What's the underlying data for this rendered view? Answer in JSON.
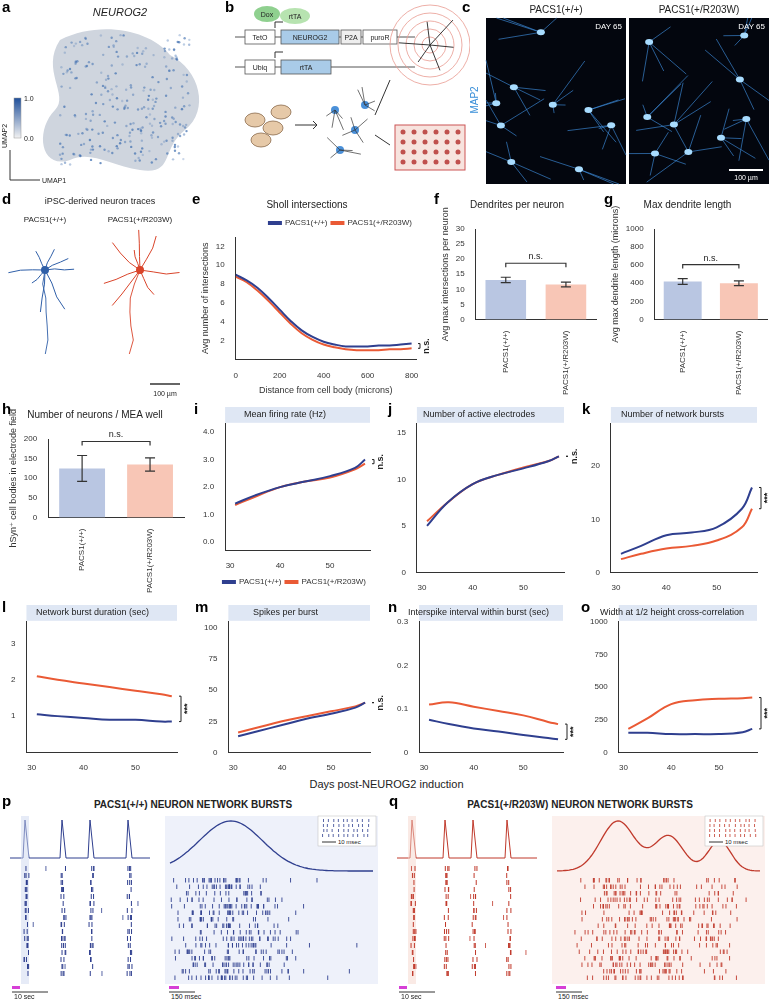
{
  "chart_data": [
    {
      "panel": "e",
      "type": "line",
      "title": "Sholl intersections",
      "xlabel": "Distance from cell body (microns)",
      "ylabel": "Avg number of intersections",
      "x": [
        0,
        50,
        100,
        150,
        200,
        250,
        300,
        350,
        400,
        450,
        500,
        550,
        600,
        650,
        700,
        750,
        800
      ],
      "series": [
        {
          "name": "PACS1(+/+)",
          "color": "#2f3f8f",
          "values": [
            9.0,
            8.4,
            7.6,
            6.5,
            5.3,
            4.1,
            3.1,
            2.4,
            1.9,
            1.6,
            1.4,
            1.4,
            1.4,
            1.5,
            1.5,
            1.6,
            1.7
          ]
        },
        {
          "name": "PACS1(+/R203W)",
          "color": "#ea5a35",
          "values": [
            8.8,
            8.2,
            7.3,
            6.2,
            5.0,
            3.8,
            2.8,
            2.1,
            1.6,
            1.3,
            1.1,
            1.0,
            1.0,
            1.0,
            1.1,
            1.1,
            1.2
          ]
        }
      ],
      "xlim": [
        0,
        820
      ],
      "xticks": [
        0,
        200,
        400,
        600,
        800
      ],
      "ylim": [
        0,
        13
      ],
      "yticks": [
        2,
        4,
        6,
        8,
        10,
        12
      ],
      "legend": "upper right",
      "grid": false,
      "marker": "none",
      "annotation": "n.s."
    },
    {
      "panel": "f",
      "type": "bar",
      "title": "Dendrites per neuron",
      "ylabel": "Avg max intersections per neuron",
      "categories": [
        "PACS1(+/+)",
        "PACS1(+/R203W)"
      ],
      "values": [
        13.1,
        11.6
      ],
      "errors": [
        0.9,
        0.8
      ],
      "colors": [
        "#b9c6e2",
        "#f8c6b6"
      ],
      "ylim": [
        0,
        30
      ],
      "yticks": [
        0,
        5,
        10,
        15,
        20,
        25,
        30
      ],
      "grid": false,
      "annotation": "n.s."
    },
    {
      "panel": "g",
      "type": "bar",
      "title": "Max dendrite length",
      "ylabel": "Avg max dendrite length (microns)",
      "categories": [
        "PACS1(+/+)",
        "PACS1(+/R203W)"
      ],
      "values": [
        420,
        400
      ],
      "errors": [
        32,
        26
      ],
      "colors": [
        "#b9c6e2",
        "#f8c6b6"
      ],
      "ylim": [
        0,
        1000
      ],
      "yticks": [
        0,
        200,
        400,
        600,
        800,
        1000
      ],
      "grid": false,
      "annotation": "n.s."
    },
    {
      "panel": "h",
      "type": "bar",
      "title": "Number of neurons / MEA well",
      "ylabel": "hSyn⁺ cell bodies in electrode field",
      "categories": [
        "PACS1(+/+)",
        "PACS1(+/R203W)"
      ],
      "values": [
        125,
        135
      ],
      "errors": [
        33,
        17
      ],
      "colors": [
        "#b9c6e2",
        "#f8c6b6"
      ],
      "ylim": [
        0,
        200
      ],
      "yticks": [
        0,
        50,
        100,
        150,
        200
      ],
      "grid": false,
      "annotation": "n.s."
    },
    {
      "panel": "i",
      "type": "line",
      "title": "Mean firing rate (Hz)",
      "x": [
        31,
        35,
        40,
        45,
        50,
        55,
        57
      ],
      "series": [
        {
          "name": "PACS1(+/+)",
          "color": "#2f3f8f",
          "values": [
            1.4,
            1.7,
            2.0,
            2.2,
            2.4,
            2.7,
            3.0
          ]
        },
        {
          "name": "PACS1(+/R203W)",
          "color": "#ea5a35",
          "values": [
            1.35,
            1.65,
            2.0,
            2.2,
            2.35,
            2.65,
            2.85
          ]
        }
      ],
      "xlim": [
        29,
        58
      ],
      "xticks": [
        30,
        40,
        50
      ],
      "ylim": [
        -0.3,
        4.3
      ],
      "yticks": [
        {
          "value": 0,
          "label": "0.0"
        },
        {
          "value": 1,
          "label": "1.0"
        },
        {
          "value": 2,
          "label": "2.0"
        },
        {
          "value": 3,
          "label": "3.0"
        },
        {
          "value": 4,
          "label": "4.0"
        }
      ],
      "legend": "lower right",
      "grid": false,
      "marker": "none",
      "annotation": "n.s."
    },
    {
      "panel": "j",
      "type": "line",
      "title": "Number of active electrodes",
      "x": [
        31,
        35,
        40,
        45,
        50,
        55,
        57
      ],
      "series": [
        {
          "name": "PACS1(+/+)",
          "color": "#2f3f8f",
          "values": [
            5.0,
            7.5,
            9.5,
            10.5,
            11.2,
            12.0,
            12.5
          ]
        },
        {
          "name": "PACS1(+/R203W)",
          "color": "#ea5a35",
          "values": [
            5.5,
            7.5,
            9.5,
            10.5,
            11.3,
            12.0,
            12.5
          ]
        }
      ],
      "xlim": [
        29,
        58
      ],
      "xticks": [
        30,
        40,
        50
      ],
      "ylim": [
        0,
        16
      ],
      "yticks": [
        0,
        5,
        10,
        15
      ],
      "grid": false,
      "marker": "none",
      "annotation": "n.s."
    },
    {
      "panel": "k",
      "type": "line",
      "title": "Number of network bursts",
      "x": [
        31,
        35,
        40,
        45,
        50,
        55,
        57
      ],
      "series": [
        {
          "name": "PACS1(+/+)",
          "color": "#2f3f8f",
          "values": [
            3.5,
            5.0,
            7.0,
            7.5,
            8.5,
            12.0,
            16.0
          ]
        },
        {
          "name": "PACS1(+/R203W)",
          "color": "#ea5a35",
          "values": [
            2.5,
            3.5,
            4.5,
            5.0,
            6.0,
            8.5,
            12.0
          ]
        }
      ],
      "xlim": [
        29,
        58
      ],
      "xticks": [
        30,
        40,
        50
      ],
      "ylim": [
        0,
        28
      ],
      "yticks": [
        0,
        10,
        20
      ],
      "grid": false,
      "marker": "none",
      "annotation": "***"
    },
    {
      "panel": "l",
      "type": "line",
      "title": "Network burst duration (sec)",
      "x": [
        31,
        35,
        40,
        45,
        50,
        55,
        57
      ],
      "series": [
        {
          "name": "PACS1(+/+)",
          "color": "#2f3f8f",
          "values": [
            1.05,
            1.0,
            0.95,
            0.9,
            0.9,
            0.85,
            0.85
          ]
        },
        {
          "name": "PACS1(+/R203W)",
          "color": "#ea5a35",
          "values": [
            2.1,
            2.0,
            1.9,
            1.8,
            1.7,
            1.6,
            1.55
          ]
        }
      ],
      "xlim": [
        29,
        58
      ],
      "xticks": [
        30,
        40,
        50
      ],
      "ylim": [
        0,
        3.6
      ],
      "yticks": [
        1,
        2,
        3
      ],
      "grid": false,
      "marker": "none",
      "annotation": "***"
    },
    {
      "panel": "m",
      "type": "line",
      "title": "Spikes per burst",
      "x": [
        31,
        35,
        40,
        45,
        50,
        55,
        57
      ],
      "series": [
        {
          "name": "PACS1(+/+)",
          "color": "#2f3f8f",
          "values": [
            13,
            17,
            22,
            27,
            31,
            36,
            40
          ]
        },
        {
          "name": "PACS1(+/R203W)",
          "color": "#ea5a35",
          "values": [
            16,
            20,
            25,
            29,
            33,
            37,
            40
          ]
        }
      ],
      "xlim": [
        29,
        58
      ],
      "xticks": [
        30,
        40,
        50
      ],
      "ylim": [
        0,
        105
      ],
      "yticks": [
        0,
        25,
        50,
        75,
        100
      ],
      "grid": false,
      "marker": "none",
      "annotation": "n.s."
    },
    {
      "panel": "n",
      "type": "line",
      "title": "Interspike interval within burst (sec)",
      "x": [
        31,
        35,
        40,
        45,
        50,
        55,
        57
      ],
      "series": [
        {
          "name": "PACS1(+/+)",
          "color": "#2f3f8f",
          "values": [
            0.075,
            0.065,
            0.055,
            0.048,
            0.04,
            0.033,
            0.03
          ]
        },
        {
          "name": "PACS1(+/R203W)",
          "color": "#ea5a35",
          "values": [
            0.11,
            0.115,
            0.105,
            0.095,
            0.085,
            0.07,
            0.065
          ]
        }
      ],
      "xlim": [
        29,
        58
      ],
      "xticks": [
        30,
        40,
        50
      ],
      "ylim": [
        0,
        0.3
      ],
      "yticks": [
        0,
        0.1,
        0.2,
        0.3
      ],
      "grid": false,
      "marker": "none",
      "annotation": "***"
    },
    {
      "panel": "o",
      "type": "line",
      "title": "Width at 1/2 height cross-correlation",
      "x": [
        31,
        35,
        40,
        45,
        50,
        55,
        57
      ],
      "series": [
        {
          "name": "PACS1(+/+)",
          "color": "#2f3f8f",
          "values": [
            150,
            150,
            140,
            140,
            140,
            155,
            180
          ]
        },
        {
          "name": "PACS1(+/R203W)",
          "color": "#ea5a35",
          "values": [
            180,
            260,
            370,
            400,
            410,
            415,
            420
          ]
        }
      ],
      "xlim": [
        29,
        58
      ],
      "xticks": [
        30,
        40,
        50
      ],
      "ylim": [
        0,
        1000
      ],
      "yticks": [
        0,
        250,
        500,
        750,
        1000
      ],
      "grid": false,
      "marker": "none",
      "annotation": "***"
    }
  ],
  "figure_text": {
    "shared_xlabel": "Days post-NEUROG2 induction",
    "a": {
      "panel": "a",
      "title": "NEUROG2",
      "xlabel": "UMAP1",
      "ylabel": "UMAP2",
      "colorbar": [
        {
          "value": 1,
          "label": "1.0"
        },
        {
          "value": 0,
          "label": "0.0"
        }
      ]
    },
    "b": {
      "panel": "b",
      "labels": {
        "dox": "Dox",
        "rtta": "rtTA",
        "teto": "TetO",
        "gene": "NEUROG2",
        "p2a": "P2A",
        "puro": "puroR",
        "ubiq": "Ubiq",
        "rtta2": "rtTA"
      }
    },
    "c": {
      "panel": "c",
      "stain": "MAP2",
      "left": "PACS1(+/+)",
      "right": "PACS1(+/R203W)",
      "day": "DAY 65",
      "scale": "100 µm"
    },
    "d": {
      "panel": "d",
      "title": "iPSC-derived neuron traces",
      "left": "PACS1(+/+)",
      "right": "PACS1(+/R203W)",
      "scale": "100 µm"
    },
    "p": {
      "panel": "p",
      "title": "PACS1(+/+) NEURON NETWORK BURSTS",
      "scales": {
        "trace": "10 sec",
        "zoom": "150 msec",
        "inset": "10 msec"
      }
    },
    "q": {
      "panel": "q",
      "title": "PACS1(+/R203W) NEURON NETWORK BURSTS",
      "scales": {
        "trace": "10 sec",
        "zoom": "150 msec",
        "inset": "10 msec"
      }
    }
  }
}
